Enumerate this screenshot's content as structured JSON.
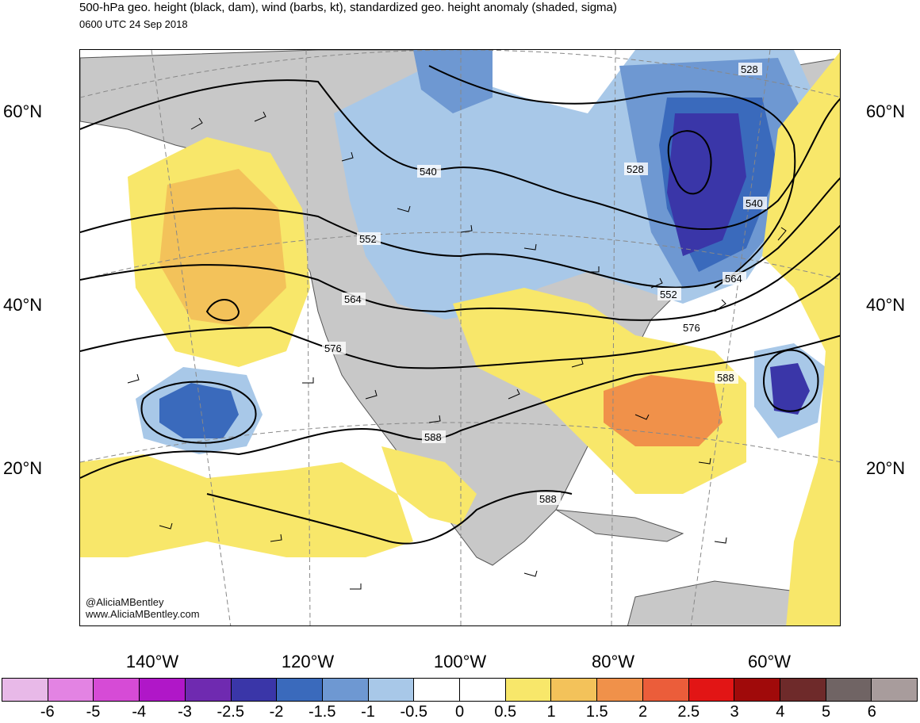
{
  "header": {
    "title": "500-hPa geo. height (black, dam), wind (barbs, kt), standardized geo. height anomaly (shaded, sigma)",
    "valid_time": "0600 UTC 24 Sep 2018"
  },
  "axes": {
    "lat_left": [
      "60°N",
      "40°N",
      "20°N"
    ],
    "lat_right": [
      "60°N",
      "40°N",
      "20°N"
    ],
    "lon_bottom": [
      "140°W",
      "120°W",
      "100°W",
      "80°W",
      "60°W"
    ]
  },
  "contour_labels": [
    "528",
    "528",
    "540",
    "540",
    "552",
    "552",
    "564",
    "564",
    "576",
    "576",
    "588",
    "588",
    "588"
  ],
  "credits": {
    "handle": "@AliciaMBentley",
    "website": "www.AliciaMBentley.com"
  },
  "colorbar": {
    "colors": [
      "#e8b9e8",
      "#e383e3",
      "#d64bd6",
      "#b017c8",
      "#6f2ab0",
      "#3a36a8",
      "#3a6abc",
      "#6e98d2",
      "#a8c8e8",
      "#ffffff",
      "#ffffff",
      "#f8e76a",
      "#f3c25a",
      "#f0914a",
      "#eb5d3a",
      "#e21515",
      "#a00a0a",
      "#6e2a2a",
      "#706464",
      "#a89c9c"
    ],
    "labels": [
      "-6",
      "-5",
      "-4",
      "-3",
      "-2.5",
      "-2",
      "-1.5",
      "-1",
      "-0.5",
      "0",
      "0.5",
      "1",
      "1.5",
      "2",
      "2.5",
      "3",
      "4",
      "5",
      "6"
    ]
  },
  "map_colors": {
    "land": "#c8c8c8",
    "ocean": "#ffffff",
    "neg_light": "#a8c8e8",
    "neg_mid": "#6e98d2",
    "neg_strong": "#3a6abc",
    "neg_deep": "#3a36a8",
    "pos_light": "#f8e76a",
    "pos_mid": "#f3c25a",
    "pos_strong": "#f0914a"
  }
}
